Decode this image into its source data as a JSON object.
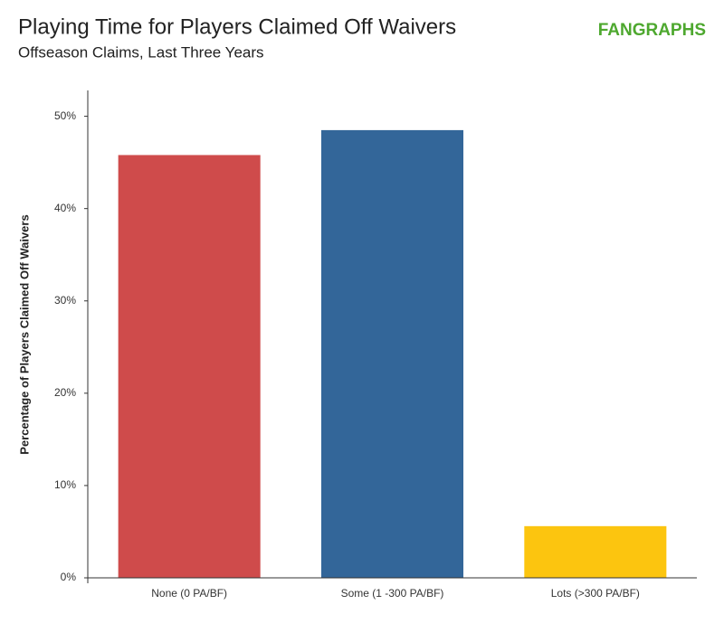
{
  "chart_data": {
    "type": "bar",
    "title": "Playing Time for Players Claimed Off Waivers",
    "subtitle": "Offseason Claims, Last Three Years",
    "logo": "FANGRAPHS",
    "ylabel": "Percentage of Players Claimed Off Waivers",
    "categories": [
      "None (0 PA/BF)",
      "Some (1 -300 PA/BF)",
      "Lots (>300 PA/BF)"
    ],
    "values": [
      45.8,
      48.5,
      5.6
    ],
    "colors": [
      "#cf4b4b",
      "#336699",
      "#fcc50f"
    ],
    "ylim": [
      0,
      52.8
    ],
    "yticks": [
      {
        "value": 0,
        "label": "0%"
      },
      {
        "value": 10,
        "label": "10%"
      },
      {
        "value": 20,
        "label": "20%"
      },
      {
        "value": 30,
        "label": "30%"
      },
      {
        "value": 40,
        "label": "40%"
      },
      {
        "value": 50,
        "label": "50%"
      }
    ],
    "grid": false
  }
}
